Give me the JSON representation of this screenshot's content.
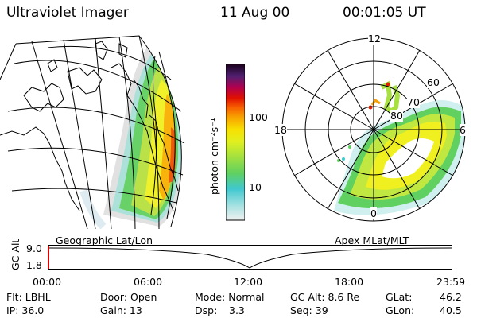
{
  "header": {
    "instrument": "Ultraviolet Imager",
    "date": "11 Aug 00",
    "time": "00:01:05 UT"
  },
  "colorbar": {
    "label": "photon cm⁻²s⁻¹",
    "ticks": [
      "100",
      "10"
    ],
    "colors": [
      "#f0f0f0",
      "#a0e0e0",
      "#40c8d0",
      "#60d060",
      "#a0e040",
      "#e0f020",
      "#f8e000",
      "#f8a000",
      "#f86000",
      "#e01000",
      "#b00050",
      "#502070",
      "#180018"
    ]
  },
  "polar_plot": {
    "mlt_labels": [
      "12",
      "18",
      "6",
      "0"
    ],
    "lat_labels": [
      "60",
      "70",
      "80"
    ]
  },
  "map_panel": {
    "label": "Geographic Lat/Lon"
  },
  "apex_label": "Apex MLat/MLT",
  "altitude_plot": {
    "axis_label": "GC Alt",
    "y_ticks": [
      "9.0",
      "1.8"
    ],
    "x_ticks": [
      "00:00",
      "06:00",
      "12:00",
      "18:00",
      "23:59"
    ]
  },
  "info": {
    "flt": "Flt: LBHL",
    "ip": "IP: 36.0",
    "door": "Door: Open",
    "gain": "Gain: 13",
    "mode": "Mode: Normal",
    "dsp_label": "Dsp:",
    "dsp_value": "3.3",
    "gc_alt": "GC Alt: 8.6 Re",
    "seq": "Seq: 39",
    "glat_label": "GLat:",
    "glat_value": "46.2",
    "glon_label": "GLon:",
    "glon_value": "40.5"
  }
}
